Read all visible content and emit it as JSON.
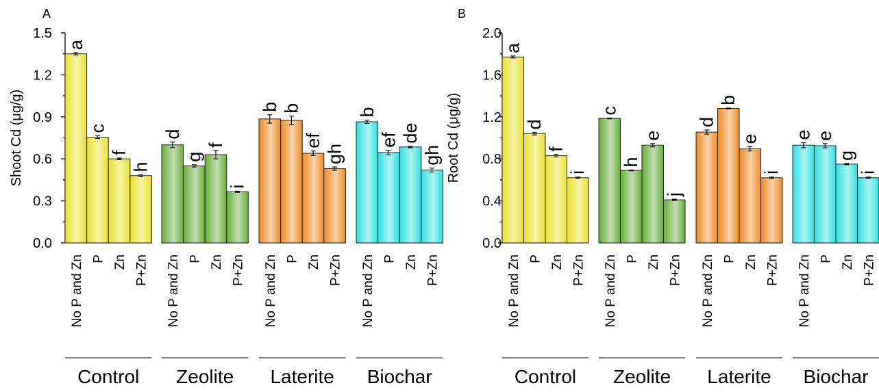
{
  "colors": {
    "Control": "#e8e22a",
    "Zeolite": "#6aac3c",
    "Laterite": "#ec8b26",
    "Biochar": "#2fe0e0"
  },
  "chart_data": [
    {
      "type": "bar",
      "panel_label": "A",
      "ylabel": "Shoot Cd (μg/g)",
      "ylim": [
        0,
        1.5
      ],
      "yticks": [
        "0.0",
        "0.3",
        "0.6",
        "0.9",
        "1.2",
        "1.5"
      ],
      "groups": [
        "Control",
        "Zeolite",
        "Laterite",
        "Biochar"
      ],
      "categories": [
        "No P and Zn",
        "P",
        "Zn",
        "P+Zn"
      ],
      "series": [
        {
          "group": "Control",
          "values": [
            1.35,
            0.755,
            0.6,
            0.48
          ],
          "errors": [
            0.008,
            0.01,
            0.006,
            0.006
          ],
          "letters": [
            "a",
            "c",
            "f",
            "h"
          ]
        },
        {
          "group": "Zeolite",
          "values": [
            0.7,
            0.55,
            0.63,
            0.365
          ],
          "errors": [
            0.02,
            0.008,
            0.03,
            0.004
          ],
          "letters": [
            "d",
            "g",
            "f",
            "i"
          ]
        },
        {
          "group": "Laterite",
          "values": [
            0.885,
            0.875,
            0.64,
            0.53
          ],
          "errors": [
            0.03,
            0.03,
            0.016,
            0.012
          ],
          "letters": [
            "b",
            "b",
            "ef",
            "gh"
          ]
        },
        {
          "group": "Biochar",
          "values": [
            0.865,
            0.645,
            0.685,
            0.52
          ],
          "errors": [
            0.012,
            0.016,
            0.006,
            0.014
          ],
          "letters": [
            "b",
            "ef",
            "de",
            "gh"
          ]
        }
      ]
    },
    {
      "type": "bar",
      "panel_label": "B",
      "ylabel": "Root Cd (μg/g)",
      "ylim": [
        0,
        2.0
      ],
      "yticks": [
        "0.0",
        "0.4",
        "0.8",
        "1.2",
        "1.6",
        "2.0"
      ],
      "groups": [
        "Control",
        "Zeolite",
        "Laterite",
        "Biochar"
      ],
      "categories": [
        "No P and Zn",
        "P",
        "Zn",
        "P+Zn"
      ],
      "series": [
        {
          "group": "Control",
          "values": [
            1.77,
            1.04,
            0.83,
            0.62
          ],
          "errors": [
            0.01,
            0.012,
            0.012,
            0.006
          ],
          "letters": [
            "a",
            "d",
            "f",
            "i"
          ]
        },
        {
          "group": "Zeolite",
          "values": [
            1.185,
            0.69,
            0.93,
            0.41
          ],
          "errors": [
            0.004,
            0.004,
            0.016,
            0.006
          ],
          "letters": [
            "c",
            "h",
            "e",
            "j"
          ]
        },
        {
          "group": "Laterite",
          "values": [
            1.055,
            1.28,
            0.895,
            0.62
          ],
          "errors": [
            0.02,
            0.004,
            0.02,
            0.006
          ],
          "letters": [
            "d",
            "b",
            "e",
            "i"
          ]
        },
        {
          "group": "Biochar",
          "values": [
            0.93,
            0.925,
            0.75,
            0.62
          ],
          "errors": [
            0.024,
            0.02,
            0.006,
            0.006
          ],
          "letters": [
            "e",
            "e",
            "g",
            "i"
          ]
        }
      ]
    }
  ]
}
